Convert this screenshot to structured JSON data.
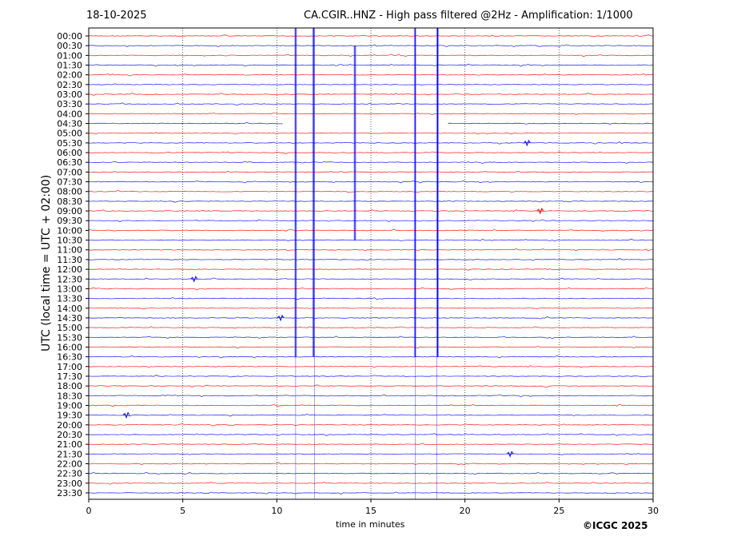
{
  "header": {
    "date": "18-10-2025",
    "title": "CA.CGIR..HNZ - High pass filtered @2Hz - Amplification: 1/1000"
  },
  "footer": {
    "copyright": "©ICGC 2025"
  },
  "chart_data": {
    "type": "line",
    "subtype": "helicorder",
    "title": "CA.CGIR..HNZ - High pass filtered @2Hz - Amplification: 1/1000",
    "xlabel": "time in minutes",
    "ylabel": "UTC (local time = UTC + 02:00)",
    "xlim": [
      0,
      30
    ],
    "xticks": [
      "0",
      "5",
      "10",
      "15",
      "20",
      "25",
      "30"
    ],
    "grid": "vertical dotted at x ticks",
    "trace_colors": [
      "#ff0000",
      "#0000ff"
    ],
    "rows": [
      "00:00",
      "00:30",
      "01:00",
      "01:30",
      "02:00",
      "02:30",
      "03:00",
      "03:30",
      "04:00",
      "04:30",
      "05:00",
      "05:30",
      "06:00",
      "06:30",
      "07:00",
      "07:30",
      "08:00",
      "08:30",
      "09:00",
      "09:30",
      "10:00",
      "10:30",
      "11:00",
      "11:30",
      "12:00",
      "12:30",
      "13:00",
      "13:30",
      "14:00",
      "14:30",
      "15:00",
      "15:30",
      "16:00",
      "16:30",
      "17:00",
      "17:30",
      "18:00",
      "18:30",
      "19:00",
      "19:30",
      "20:00",
      "20:30",
      "21:00",
      "21:30",
      "22:00",
      "22:30",
      "23:00",
      "23:30"
    ],
    "data_gap": {
      "row": "04:30",
      "from_minute": 10.3,
      "to_minute": 19.1
    },
    "spikes": [
      {
        "minute": 11.0,
        "from": "00:00",
        "to": "16:30"
      },
      {
        "minute": 11.95,
        "from": "00:00",
        "to": "16:30"
      },
      {
        "minute": 14.15,
        "from": "00:30",
        "to": "10:30"
      },
      {
        "minute": 17.35,
        "from": "00:00",
        "to": "16:30"
      },
      {
        "minute": 18.55,
        "from": "00:00",
        "to": "16:30"
      }
    ],
    "events": [
      {
        "row": "09:00",
        "minute": 24.0
      },
      {
        "row": "12:30",
        "minute": 5.6
      },
      {
        "row": "14:30",
        "minute": 10.2
      },
      {
        "row": "19:30",
        "minute": 2.0
      },
      {
        "row": "05:30",
        "minute": 23.3
      },
      {
        "row": "21:30",
        "minute": 22.4
      }
    ]
  }
}
